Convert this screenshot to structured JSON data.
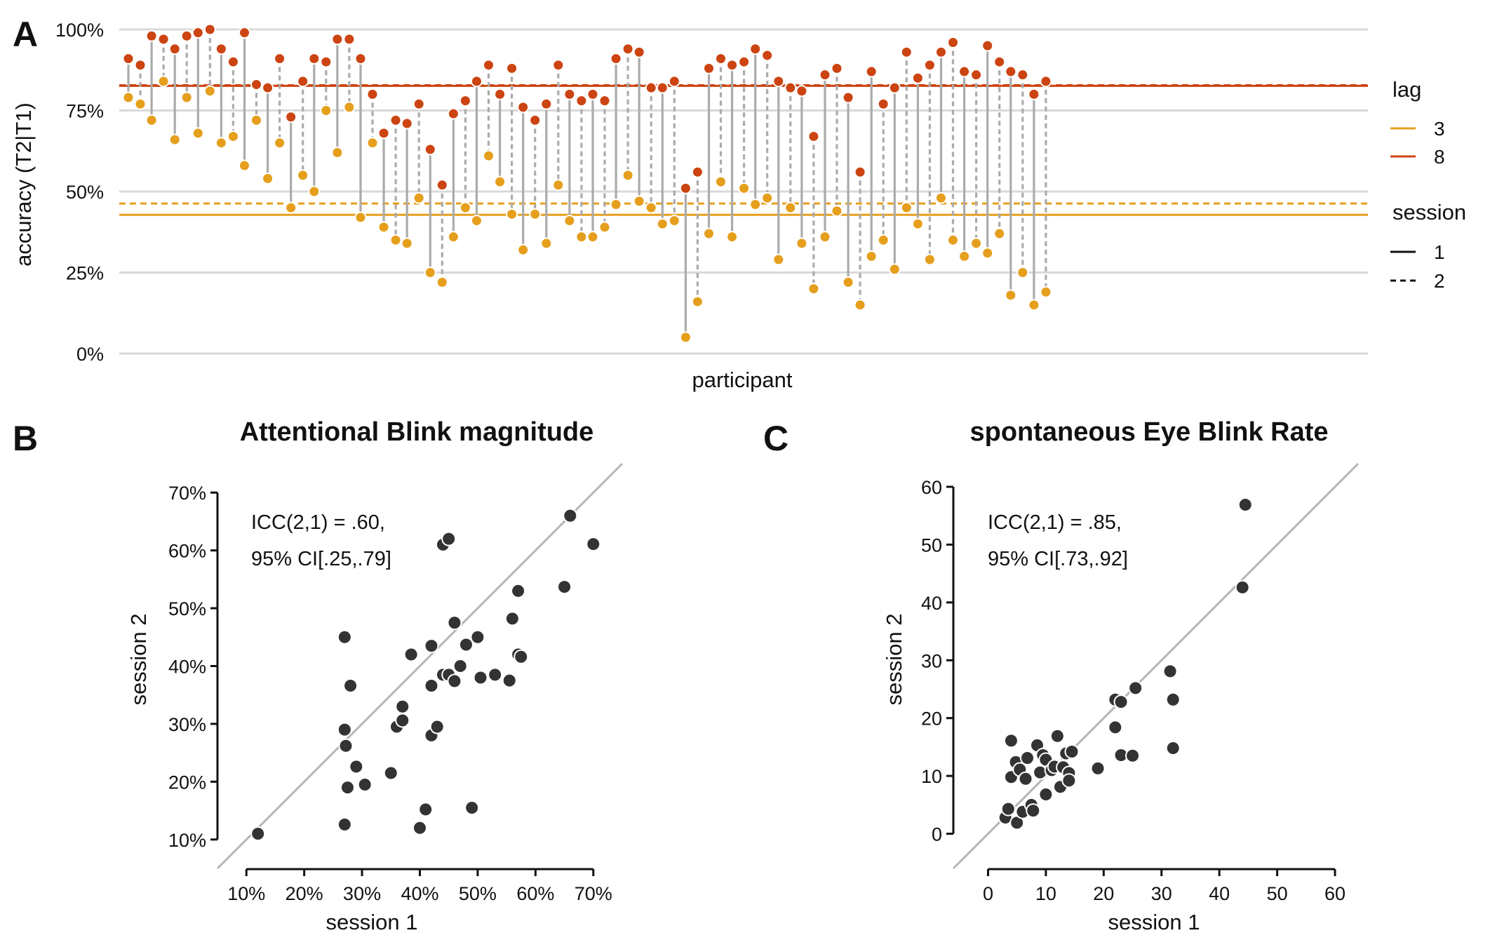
{
  "chart_data": [
    {
      "panel": "A",
      "type": "scatter",
      "title": "",
      "xlabel": "participant",
      "ylabel": "accuracy (T2|T1)",
      "ylim": [
        0,
        1
      ],
      "yticks": [
        "0%",
        "25%",
        "50%",
        "75%",
        "100%"
      ],
      "grid": true,
      "legend": {
        "lag": {
          "title": "lag",
          "items": [
            {
              "label": "3",
              "color": "#E69F1C"
            },
            {
              "label": "8",
              "color": "#CC4411"
            }
          ]
        },
        "session": {
          "title": "session",
          "items": [
            {
              "label": "1",
              "style": "solid"
            },
            {
              "label": "2",
              "style": "dashed"
            }
          ]
        }
      },
      "mean_lines": [
        {
          "lag": "8",
          "session": "1",
          "y": 0.826
        },
        {
          "lag": "8",
          "session": "2",
          "y": 0.828
        },
        {
          "lag": "3",
          "session": "1",
          "y": 0.428
        },
        {
          "lag": "3",
          "session": "2",
          "y": 0.463
        }
      ],
      "participants": [
        {
          "s1": {
            "lag8": 0.91,
            "lag3": 0.79
          },
          "s2": {
            "lag8": 0.89,
            "lag3": 0.77
          }
        },
        {
          "s1": {
            "lag8": 0.98,
            "lag3": 0.72
          },
          "s2": {
            "lag8": 0.97,
            "lag3": 0.84
          }
        },
        {
          "s1": {
            "lag8": 0.94,
            "lag3": 0.66
          },
          "s2": {
            "lag8": 0.98,
            "lag3": 0.79
          }
        },
        {
          "s1": {
            "lag8": 0.99,
            "lag3": 0.68
          },
          "s2": {
            "lag8": 1.0,
            "lag3": 0.81
          }
        },
        {
          "s1": {
            "lag8": 0.94,
            "lag3": 0.65
          },
          "s2": {
            "lag8": 0.9,
            "lag3": 0.67
          }
        },
        {
          "s1": {
            "lag8": 0.99,
            "lag3": 0.58
          },
          "s2": {
            "lag8": 0.83,
            "lag3": 0.72
          }
        },
        {
          "s1": {
            "lag8": 0.82,
            "lag3": 0.54
          },
          "s2": {
            "lag8": 0.91,
            "lag3": 0.65
          }
        },
        {
          "s1": {
            "lag8": 0.73,
            "lag3": 0.45
          },
          "s2": {
            "lag8": 0.84,
            "lag3": 0.55
          }
        },
        {
          "s1": {
            "lag8": 0.91,
            "lag3": 0.5
          },
          "s2": {
            "lag8": 0.9,
            "lag3": 0.75
          }
        },
        {
          "s1": {
            "lag8": 0.97,
            "lag3": 0.62
          },
          "s2": {
            "lag8": 0.97,
            "lag3": 0.76
          }
        },
        {
          "s1": {
            "lag8": 0.91,
            "lag3": 0.42
          },
          "s2": {
            "lag8": 0.8,
            "lag3": 0.65
          }
        },
        {
          "s1": {
            "lag8": 0.68,
            "lag3": 0.39
          },
          "s2": {
            "lag8": 0.72,
            "lag3": 0.35
          }
        },
        {
          "s1": {
            "lag8": 0.71,
            "lag3": 0.34
          },
          "s2": {
            "lag8": 0.77,
            "lag3": 0.48
          }
        },
        {
          "s1": {
            "lag8": 0.63,
            "lag3": 0.25
          },
          "s2": {
            "lag8": 0.52,
            "lag3": 0.22
          }
        },
        {
          "s1": {
            "lag8": 0.74,
            "lag3": 0.36
          },
          "s2": {
            "lag8": 0.78,
            "lag3": 0.45
          }
        },
        {
          "s1": {
            "lag8": 0.84,
            "lag3": 0.41
          },
          "s2": {
            "lag8": 0.89,
            "lag3": 0.61
          }
        },
        {
          "s1": {
            "lag8": 0.8,
            "lag3": 0.53
          },
          "s2": {
            "lag8": 0.88,
            "lag3": 0.43
          }
        },
        {
          "s1": {
            "lag8": 0.76,
            "lag3": 0.32
          },
          "s2": {
            "lag8": 0.72,
            "lag3": 0.43
          }
        },
        {
          "s1": {
            "lag8": 0.77,
            "lag3": 0.34
          },
          "s2": {
            "lag8": 0.89,
            "lag3": 0.52
          }
        },
        {
          "s1": {
            "lag8": 0.8,
            "lag3": 0.41
          },
          "s2": {
            "lag8": 0.78,
            "lag3": 0.36
          }
        },
        {
          "s1": {
            "lag8": 0.8,
            "lag3": 0.36
          },
          "s2": {
            "lag8": 0.78,
            "lag3": 0.39
          }
        },
        {
          "s1": {
            "lag8": 0.91,
            "lag3": 0.46
          },
          "s2": {
            "lag8": 0.94,
            "lag3": 0.55
          }
        },
        {
          "s1": {
            "lag8": 0.93,
            "lag3": 0.47
          },
          "s2": {
            "lag8": 0.82,
            "lag3": 0.45
          }
        },
        {
          "s1": {
            "lag8": 0.82,
            "lag3": 0.4
          },
          "s2": {
            "lag8": 0.84,
            "lag3": 0.41
          }
        },
        {
          "s1": {
            "lag8": 0.51,
            "lag3": 0.05
          },
          "s2": {
            "lag8": 0.56,
            "lag3": 0.16
          }
        },
        {
          "s1": {
            "lag8": 0.88,
            "lag3": 0.37
          },
          "s2": {
            "lag8": 0.91,
            "lag3": 0.53
          }
        },
        {
          "s1": {
            "lag8": 0.89,
            "lag3": 0.36
          },
          "s2": {
            "lag8": 0.9,
            "lag3": 0.51
          }
        },
        {
          "s1": {
            "lag8": 0.94,
            "lag3": 0.46
          },
          "s2": {
            "lag8": 0.92,
            "lag3": 0.48
          }
        },
        {
          "s1": {
            "lag8": 0.84,
            "lag3": 0.29
          },
          "s2": {
            "lag8": 0.82,
            "lag3": 0.45
          }
        },
        {
          "s1": {
            "lag8": 0.81,
            "lag3": 0.34
          },
          "s2": {
            "lag8": 0.67,
            "lag3": 0.2
          }
        },
        {
          "s1": {
            "lag8": 0.86,
            "lag3": 0.36
          },
          "s2": {
            "lag8": 0.88,
            "lag3": 0.44
          }
        },
        {
          "s1": {
            "lag8": 0.79,
            "lag3": 0.22
          },
          "s2": {
            "lag8": 0.56,
            "lag3": 0.15
          }
        },
        {
          "s1": {
            "lag8": 0.87,
            "lag3": 0.3
          },
          "s2": {
            "lag8": 0.77,
            "lag3": 0.35
          }
        },
        {
          "s1": {
            "lag8": 0.82,
            "lag3": 0.26
          },
          "s2": {
            "lag8": 0.93,
            "lag3": 0.45
          }
        },
        {
          "s1": {
            "lag8": 0.85,
            "lag3": 0.4
          },
          "s2": {
            "lag8": 0.89,
            "lag3": 0.29
          }
        },
        {
          "s1": {
            "lag8": 0.93,
            "lag3": 0.48
          },
          "s2": {
            "lag8": 0.96,
            "lag3": 0.35
          }
        },
        {
          "s1": {
            "lag8": 0.87,
            "lag3": 0.3
          },
          "s2": {
            "lag8": 0.86,
            "lag3": 0.34
          }
        },
        {
          "s1": {
            "lag8": 0.95,
            "lag3": 0.31
          },
          "s2": {
            "lag8": 0.9,
            "lag3": 0.37
          }
        },
        {
          "s1": {
            "lag8": 0.87,
            "lag3": 0.18
          },
          "s2": {
            "lag8": 0.86,
            "lag3": 0.25
          }
        },
        {
          "s1": {
            "lag8": 0.8,
            "lag3": 0.15
          },
          "s2": {
            "lag8": 0.84,
            "lag3": 0.19
          }
        }
      ]
    },
    {
      "panel": "B",
      "type": "scatter",
      "title": "Attentional Blink magnitude",
      "xlabel": "session 1",
      "ylabel": "session 2",
      "xlim": [
        0.05,
        0.75
      ],
      "ylim": [
        0.05,
        0.75
      ],
      "xticks": [
        "10%",
        "20%",
        "30%",
        "40%",
        "50%",
        "60%",
        "70%"
      ],
      "yticks": [
        "10%",
        "20%",
        "30%",
        "40%",
        "50%",
        "60%",
        "70%"
      ],
      "annotation": [
        "ICC(2,1) = .60,",
        "95% CI[.25,.79]"
      ],
      "points": [
        [
          0.12,
          0.11
        ],
        [
          0.27,
          0.45
        ],
        [
          0.27,
          0.29
        ],
        [
          0.272,
          0.262
        ],
        [
          0.275,
          0.19
        ],
        [
          0.28,
          0.366
        ],
        [
          0.29,
          0.226
        ],
        [
          0.305,
          0.195
        ],
        [
          0.27,
          0.126
        ],
        [
          0.35,
          0.215
        ],
        [
          0.36,
          0.295
        ],
        [
          0.37,
          0.33
        ],
        [
          0.37,
          0.306
        ],
        [
          0.385,
          0.42
        ],
        [
          0.4,
          0.12
        ],
        [
          0.41,
          0.152
        ],
        [
          0.42,
          0.435
        ],
        [
          0.42,
          0.366
        ],
        [
          0.42,
          0.28
        ],
        [
          0.43,
          0.295
        ],
        [
          0.44,
          0.385
        ],
        [
          0.45,
          0.385
        ],
        [
          0.44,
          0.61
        ],
        [
          0.45,
          0.62
        ],
        [
          0.46,
          0.475
        ],
        [
          0.46,
          0.374
        ],
        [
          0.47,
          0.4
        ],
        [
          0.48,
          0.437
        ],
        [
          0.49,
          0.155
        ],
        [
          0.5,
          0.45
        ],
        [
          0.505,
          0.38
        ],
        [
          0.53,
          0.385
        ],
        [
          0.555,
          0.375
        ],
        [
          0.56,
          0.482
        ],
        [
          0.57,
          0.53
        ],
        [
          0.57,
          0.42
        ],
        [
          0.575,
          0.416
        ],
        [
          0.65,
          0.537
        ],
        [
          0.66,
          0.66
        ],
        [
          0.7,
          0.611
        ]
      ]
    },
    {
      "panel": "C",
      "type": "scatter",
      "title": "spontaneous Eye Blink Rate",
      "xlabel": "session 1",
      "ylabel": "session 2",
      "xlim": [
        -6,
        64
      ],
      "ylim": [
        -6,
        64
      ],
      "xticks": [
        "0",
        "10",
        "20",
        "30",
        "40",
        "50",
        "60"
      ],
      "yticks": [
        "0",
        "10",
        "20",
        "30",
        "40",
        "50",
        "60"
      ],
      "annotation": [
        "ICC(2,1) = .85,",
        "95% CI[.73,.92]"
      ],
      "points": [
        [
          3,
          2.8
        ],
        [
          3.5,
          4.3
        ],
        [
          4,
          9.8
        ],
        [
          4,
          16.1
        ],
        [
          4.8,
          12.4
        ],
        [
          5,
          1.9
        ],
        [
          5.5,
          11.1
        ],
        [
          6,
          3.8
        ],
        [
          6.5,
          9.5
        ],
        [
          6.8,
          13.1
        ],
        [
          7.5,
          5.0
        ],
        [
          7.8,
          4.0
        ],
        [
          8.5,
          15.3
        ],
        [
          9,
          10.6
        ],
        [
          9.5,
          13.6
        ],
        [
          10,
          12.8
        ],
        [
          10,
          6.8
        ],
        [
          11,
          11.0
        ],
        [
          11.5,
          11.6
        ],
        [
          12,
          16.9
        ],
        [
          12.5,
          8.1
        ],
        [
          13,
          11.5
        ],
        [
          13.5,
          13.9
        ],
        [
          14,
          10.5
        ],
        [
          14,
          9.2
        ],
        [
          14.5,
          14.2
        ],
        [
          19,
          11.3
        ],
        [
          22,
          18.4
        ],
        [
          22,
          23.2
        ],
        [
          23,
          22.8
        ],
        [
          23,
          13.6
        ],
        [
          25,
          13.5
        ],
        [
          25.5,
          25.2
        ],
        [
          31.5,
          28.1
        ],
        [
          32,
          23.2
        ],
        [
          32,
          14.8
        ],
        [
          44,
          42.6
        ],
        [
          44.5,
          56.9
        ]
      ]
    }
  ],
  "panel_labels": {
    "a": "A",
    "b": "B",
    "c": "C"
  },
  "colors": {
    "lag3": "#E69F1C",
    "lag8": "#CC4411",
    "connector": "#ABABAB",
    "grid": "#D9D9D9",
    "points": "#333333"
  }
}
